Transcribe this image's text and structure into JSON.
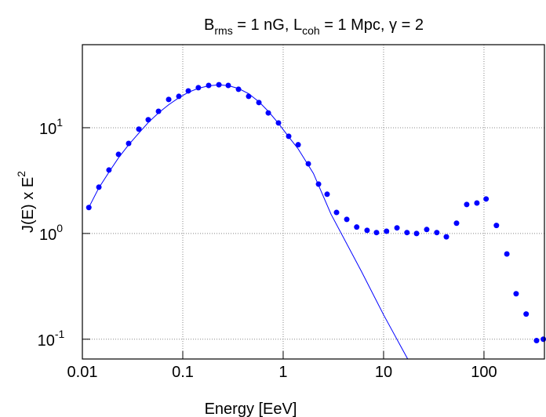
{
  "chart_data": {
    "type": "scatter",
    "title": [
      "B",
      "rms",
      " = 1 nG, L",
      "coh",
      " = 1 Mpc, γ = 2"
    ],
    "x_label": "Energy [EeV]",
    "y_label": [
      "J(E) x E",
      "2"
    ],
    "log_x": true,
    "log_y": true,
    "grid": true,
    "xlim": [
      0.01,
      400
    ],
    "ylim": [
      0.065,
      61
    ],
    "xticks": [
      0.01,
      0.1,
      1,
      10,
      100
    ],
    "yticks": [
      {
        "value": 0.1,
        "label": "10",
        "exponent": "-1"
      },
      {
        "value": 1,
        "label": "10",
        "exponent": "0"
      },
      {
        "value": 10,
        "label": "10",
        "exponent": "1"
      }
    ],
    "series": [
      {
        "style": "line",
        "color": "#0000ff",
        "x": [
          0.0116,
          0.0146,
          0.0184,
          0.0229,
          0.0289,
          0.0365,
          0.0453,
          0.0573,
          0.0724,
          0.0914,
          0.1135,
          0.143,
          0.181,
          0.229,
          0.284,
          0.359,
          0.453,
          0.573,
          0.711,
          0.898,
          1.135,
          1.41,
          2,
          3,
          6,
          10,
          17.4
        ],
        "values": [
          1.76,
          2.7,
          3.8,
          5.2,
          6.9,
          8.9,
          11.2,
          13.8,
          16.5,
          19.2,
          21.6,
          23.6,
          24.9,
          25.4,
          25.0,
          23.5,
          21.0,
          17.6,
          14.3,
          11.0,
          8.2,
          6.3,
          3.7,
          1.52,
          0.44,
          0.17,
          0.065
        ]
      },
      {
        "style": "markers",
        "color": "#0000ff",
        "x": [
          0.0116,
          0.0146,
          0.0184,
          0.0229,
          0.0289,
          0.0365,
          0.0453,
          0.0573,
          0.0724,
          0.0914,
          0.1135,
          0.143,
          0.181,
          0.229,
          0.284,
          0.359,
          0.453,
          0.573,
          0.711,
          0.898,
          1.135,
          1.41,
          1.78,
          2.25,
          2.74,
          3.4,
          4.3,
          5.4,
          6.85,
          8.5,
          10.7,
          13.6,
          17.1,
          21.3,
          26.9,
          33.9,
          42.2,
          53.3,
          67.3,
          85,
          105,
          133,
          169,
          209,
          263,
          334,
          390
        ],
        "values": [
          1.76,
          2.74,
          3.98,
          5.6,
          7.1,
          9.7,
          11.9,
          14.3,
          18.5,
          19.8,
          22.3,
          23.9,
          25.1,
          25.5,
          25.1,
          23.1,
          19.8,
          17.3,
          13.8,
          11.1,
          8.3,
          6.9,
          4.56,
          2.93,
          2.35,
          1.58,
          1.36,
          1.15,
          1.07,
          1.02,
          1.05,
          1.13,
          1.02,
          1.0,
          1.09,
          1.02,
          0.93,
          1.25,
          1.88,
          1.94,
          2.12,
          1.19,
          0.64,
          0.269,
          0.173,
          0.097,
          0.1
        ]
      }
    ]
  }
}
